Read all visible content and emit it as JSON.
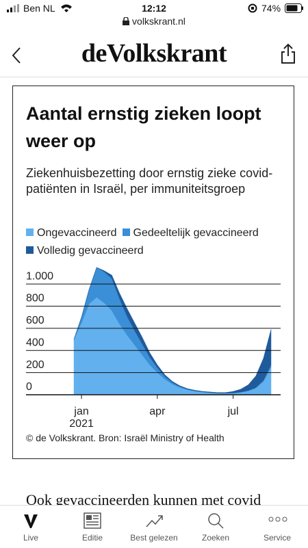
{
  "status_bar": {
    "carrier": "Ben NL",
    "time": "12:12",
    "battery": "74%"
  },
  "url": "volkskrant.nl",
  "header": {
    "logo": "deVolkskrant"
  },
  "chart_data": {
    "type": "stacked-area",
    "title": "Aantal ernstig zieken loopt weer op",
    "subtitle": "Ziekenhuisbezetting door ernstig zieke covid-patiënten in Israël, per immuniteitsgroep",
    "categories": [
      null,
      "jan",
      null,
      null,
      null,
      null,
      null,
      null,
      null,
      null,
      null,
      "apr",
      null,
      null,
      null,
      null,
      null,
      null,
      null,
      null,
      null,
      "jul",
      null,
      null,
      null,
      null,
      null
    ],
    "x_year_label": "2021",
    "series": [
      {
        "name": "Ongevaccineerd",
        "color": "#62b0ee",
        "values": [
          500,
          650,
          820,
          880,
          830,
          760,
          640,
          540,
          450,
          360,
          270,
          200,
          140,
          95,
          65,
          45,
          32,
          24,
          18,
          14,
          13,
          15,
          22,
          35,
          60,
          120,
          250
        ]
      },
      {
        "name": "Gedeeltelijk gevaccineerd",
        "color": "#3a8fd6",
        "values": [
          0,
          50,
          130,
          270,
          280,
          290,
          230,
          170,
          130,
          100,
          70,
          45,
          25,
          15,
          8,
          5,
          3,
          2,
          2,
          1,
          1,
          1,
          2,
          3,
          5,
          10,
          20
        ]
      },
      {
        "name": "Volledig gevaccineerd",
        "color": "#1f5b9c",
        "values": [
          0,
          0,
          0,
          0,
          10,
          30,
          50,
          70,
          70,
          60,
          40,
          25,
          15,
          10,
          7,
          5,
          5,
          4,
          5,
          5,
          6,
          14,
          26,
          52,
          105,
          200,
          320
        ]
      }
    ],
    "ylim": [
      0,
      1180
    ],
    "yticks": [
      0,
      200,
      400,
      600,
      800,
      {
        "value": 1000,
        "label": "1.000"
      }
    ],
    "grid": true,
    "source": "© de Volkskrant. Bron: Israël Ministry of Health"
  },
  "teaser": "Ook gevaccineerden kunnen met covid",
  "tabs": [
    "Live",
    "Editie",
    "Best gelezen",
    "Zoeken",
    "Service"
  ]
}
